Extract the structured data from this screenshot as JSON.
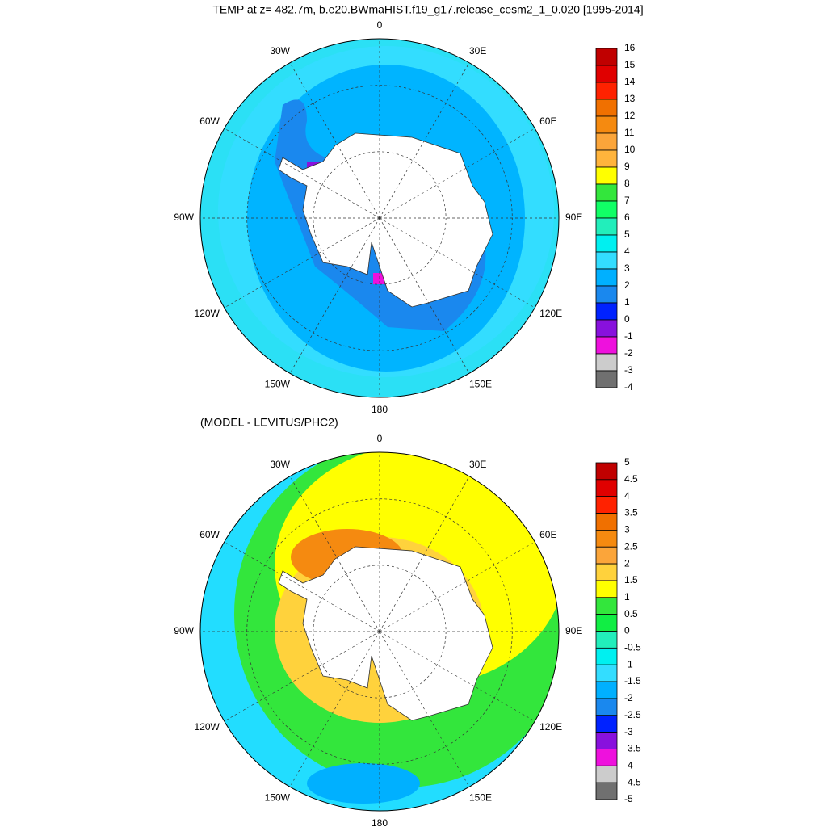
{
  "title": "TEMP at z= 482.7m, b.e20.BWmaHIST.f19_g17.release_cesm2_1_0.020 [1995-2014]",
  "maps": [
    {
      "lon_labels": [
        "0",
        "30E",
        "60E",
        "90E",
        "120E",
        "150E",
        "180",
        "150W",
        "120W",
        "90W",
        "60W",
        "30W"
      ],
      "colorbar": {
        "labels": [
          16,
          15,
          14,
          13,
          12,
          11,
          10,
          9,
          8,
          7,
          6,
          5,
          4,
          3,
          2,
          1,
          0,
          -1,
          -2,
          -3,
          -4
        ],
        "colors": [
          "#c00000",
          "#e00000",
          "#ff2200",
          "#f07000",
          "#f58a10",
          "#fba53a",
          "#ffb43c",
          "#ffff00",
          "#33e63c",
          "#11ff66",
          "#22eebb",
          "#00f0f0",
          "#33ddff",
          "#00b0ff",
          "#1a88ee",
          "#0022ff",
          "#8811dd",
          "#ee11dd",
          "#cccccc",
          "#707070"
        ]
      }
    },
    {
      "subtitle": "(MODEL - LEVITUS/PHC2)",
      "lon_labels": [
        "0",
        "30E",
        "60E",
        "90E",
        "120E",
        "150E",
        "180",
        "150W",
        "120W",
        "90W",
        "60W",
        "30W"
      ],
      "colorbar": {
        "labels": [
          5,
          4.5,
          4,
          3.5,
          3,
          2.5,
          2,
          1.5,
          1,
          0.5,
          0,
          -0.5,
          -1,
          -1.5,
          -2,
          -2.5,
          -3,
          -3.5,
          -4,
          -4.5,
          -5
        ],
        "colors": [
          "#c00000",
          "#e00000",
          "#ff2200",
          "#f07000",
          "#f58a10",
          "#fba53a",
          "#ffd23c",
          "#ffff00",
          "#33e63c",
          "#11ee44",
          "#22eebb",
          "#00f0f0",
          "#33ddff",
          "#00b0ff",
          "#1a88ee",
          "#0022ff",
          "#8811dd",
          "#ee11dd",
          "#cccccc",
          "#707070"
        ]
      }
    }
  ]
}
